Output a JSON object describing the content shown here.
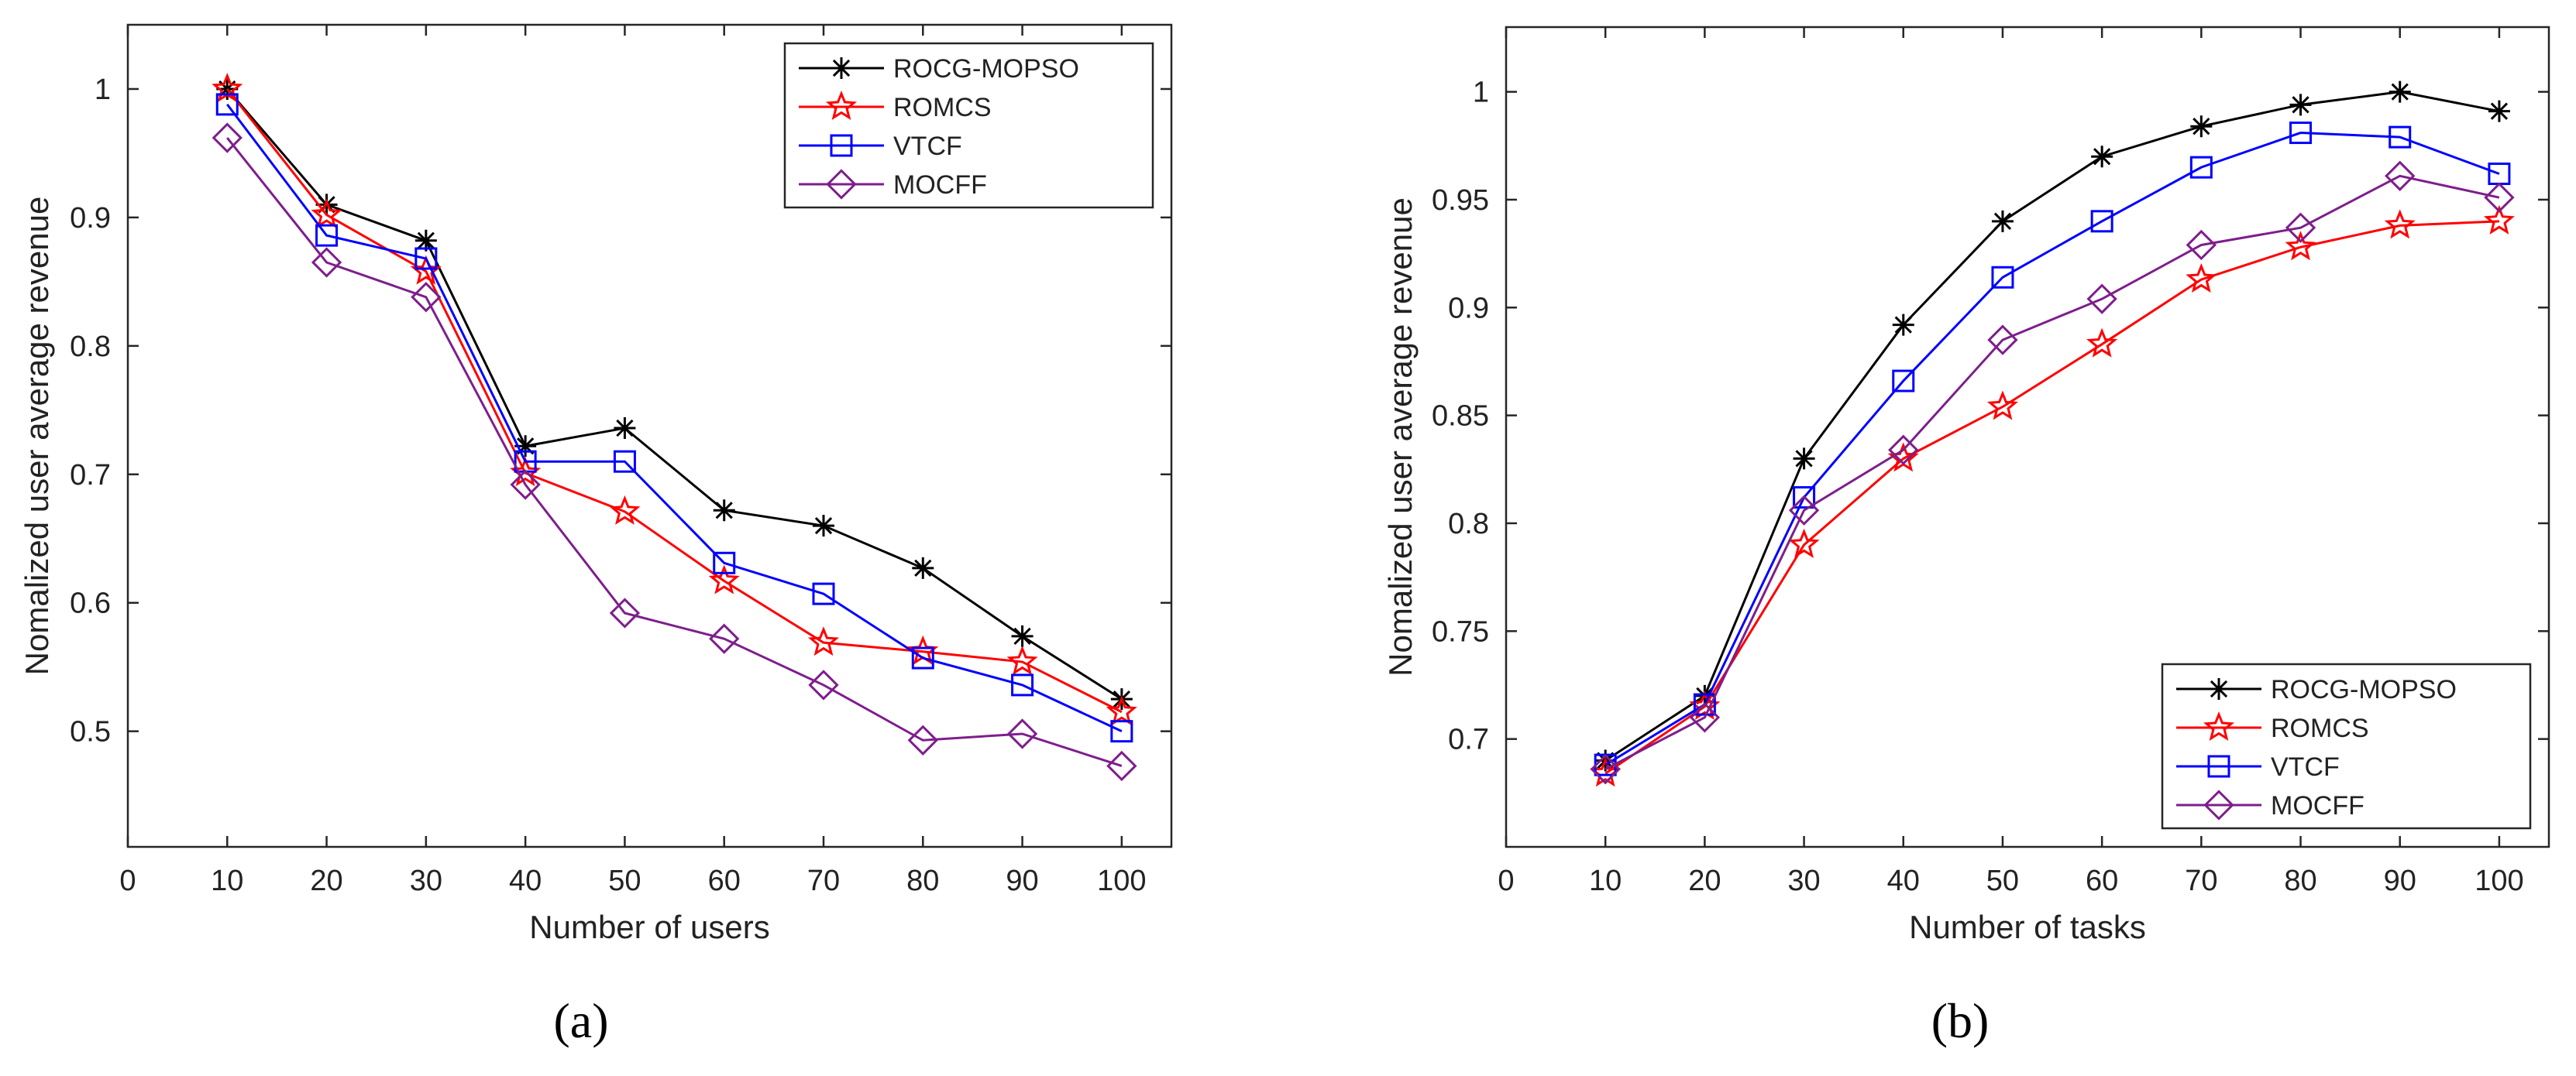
{
  "figure": {
    "panel_labels": [
      "(a)",
      "(b)"
    ]
  },
  "chart_data": [
    {
      "type": "line",
      "panel": "(a)",
      "title": "",
      "xlabel": "Number of users",
      "ylabel": "Nomalized user average revenue",
      "xlim": [
        0,
        105
      ],
      "ylim": [
        0.41,
        1.05
      ],
      "xticks": [
        0,
        10,
        20,
        30,
        40,
        50,
        60,
        70,
        80,
        90,
        100
      ],
      "yticks": [
        0.5,
        0.6,
        0.7,
        0.8,
        0.9,
        1
      ],
      "grid": false,
      "legend_position": "top-right",
      "x": [
        10,
        20,
        30,
        40,
        50,
        60,
        70,
        80,
        90,
        100
      ],
      "series": [
        {
          "name": "ROCG-MOPSO",
          "color": "#000000",
          "marker": "asterisk",
          "values": [
            1.0,
            0.91,
            0.882,
            0.722,
            0.736,
            0.672,
            0.66,
            0.627,
            0.574,
            0.525
          ]
        },
        {
          "name": "ROMCS",
          "color": "#ff0000",
          "marker": "star",
          "values": [
            1.0,
            0.902,
            0.858,
            0.701,
            0.671,
            0.617,
            0.569,
            0.562,
            0.554,
            0.515
          ]
        },
        {
          "name": "VTCF",
          "color": "#0000ff",
          "marker": "square",
          "values": [
            0.988,
            0.886,
            0.868,
            0.71,
            0.71,
            0.631,
            0.607,
            0.557,
            0.536,
            0.5
          ]
        },
        {
          "name": "MOCFF",
          "color": "#7e1e8c",
          "marker": "diamond",
          "values": [
            0.962,
            0.865,
            0.838,
            0.692,
            0.592,
            0.572,
            0.536,
            0.493,
            0.498,
            0.473
          ]
        }
      ]
    },
    {
      "type": "line",
      "panel": "(b)",
      "title": "",
      "xlabel": "Number of tasks",
      "ylabel": "Nomalized user average revenue",
      "xlim": [
        0,
        105
      ],
      "ylim": [
        0.65,
        1.03
      ],
      "xticks": [
        0,
        10,
        20,
        30,
        40,
        50,
        60,
        70,
        80,
        90,
        100
      ],
      "yticks": [
        0.7,
        0.75,
        0.8,
        0.85,
        0.9,
        0.95,
        1
      ],
      "grid": false,
      "legend_position": "bottom-right",
      "x": [
        10,
        20,
        30,
        40,
        50,
        60,
        70,
        80,
        90,
        100
      ],
      "series": [
        {
          "name": "ROCG-MOPSO",
          "color": "#000000",
          "marker": "asterisk",
          "values": [
            0.69,
            0.72,
            0.83,
            0.892,
            0.94,
            0.97,
            0.984,
            0.994,
            1.0,
            0.991
          ]
        },
        {
          "name": "ROMCS",
          "color": "#ff0000",
          "marker": "star",
          "values": [
            0.684,
            0.715,
            0.79,
            0.83,
            0.854,
            0.883,
            0.913,
            0.928,
            0.938,
            0.94
          ]
        },
        {
          "name": "VTCF",
          "color": "#0000ff",
          "marker": "square",
          "values": [
            0.688,
            0.716,
            0.812,
            0.866,
            0.914,
            0.94,
            0.965,
            0.981,
            0.979,
            0.962
          ]
        },
        {
          "name": "MOCFF",
          "color": "#7e1e8c",
          "marker": "diamond",
          "values": [
            0.686,
            0.71,
            0.806,
            0.834,
            0.885,
            0.904,
            0.929,
            0.937,
            0.961,
            0.951
          ]
        }
      ]
    }
  ]
}
